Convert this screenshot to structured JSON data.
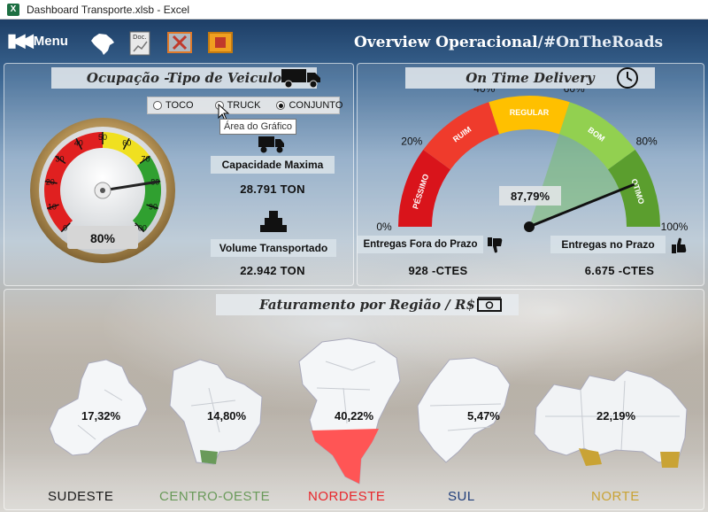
{
  "window": {
    "title": "Dashboard Transporte.xlsb - Excel",
    "app_icon": "X"
  },
  "header": {
    "menu_label": "Menu",
    "title_main": "Overview Operacional",
    "title_tag": "/#OnTheRoads",
    "icons": [
      "brazil-map-icon",
      "document-chart-icon",
      "close-chart-icon",
      "exit-icon"
    ],
    "doc_icon_text": "Doc."
  },
  "occupancy": {
    "title": "Ocupação -Tipo de Veiculo",
    "options": [
      "TOCO",
      "TRUCK",
      "CONJUNTO"
    ],
    "selected": "CONJUNTO",
    "tooltip": "Área do Gráfico",
    "gauge_ticks": [
      "0",
      "10",
      "20",
      "30",
      "40",
      "50",
      "60",
      "70",
      "80",
      "90",
      "100"
    ],
    "gauge_value": 80,
    "gauge_label": "80%",
    "capacity_label": "Capacidade Maxima",
    "capacity_value": "28.791 TON",
    "volume_label": "Volume Transportado",
    "volume_value": "22.942 TON"
  },
  "otd": {
    "title": "On Time Delivery",
    "scale": [
      "0%",
      "20%",
      "40%",
      "60%",
      "80%",
      "100%"
    ],
    "segments": [
      "PÉSSIMO",
      "RUIM",
      "REGULAR",
      "BOM",
      "OTIMO"
    ],
    "segment_colors": [
      "#d9141b",
      "#ef3b2c",
      "#ffc000",
      "#92d050",
      "#5b9e2e"
    ],
    "value": 87.79,
    "value_label": "87,79%",
    "late_label": "Entregas Fora do Prazo",
    "late_value": "928 -CTES",
    "ontime_label": "Entregas no Prazo",
    "ontime_value": "6.675 -CTES"
  },
  "revenue": {
    "title": "Faturamento por Região / R$",
    "regions": [
      {
        "name": "SUDESTE",
        "pct": "17,32%",
        "color": "#1a1a1a"
      },
      {
        "name": "CENTRO-OESTE",
        "pct": "14,80%",
        "color": "#6a9a5a"
      },
      {
        "name": "NORDESTE",
        "pct": "40,22%",
        "color": "#e8262b"
      },
      {
        "name": "SUL",
        "pct": "5,47%",
        "color": "#1f3d7a"
      },
      {
        "name": "NORTE",
        "pct": "22,19%",
        "color": "#c9a335"
      }
    ]
  }
}
